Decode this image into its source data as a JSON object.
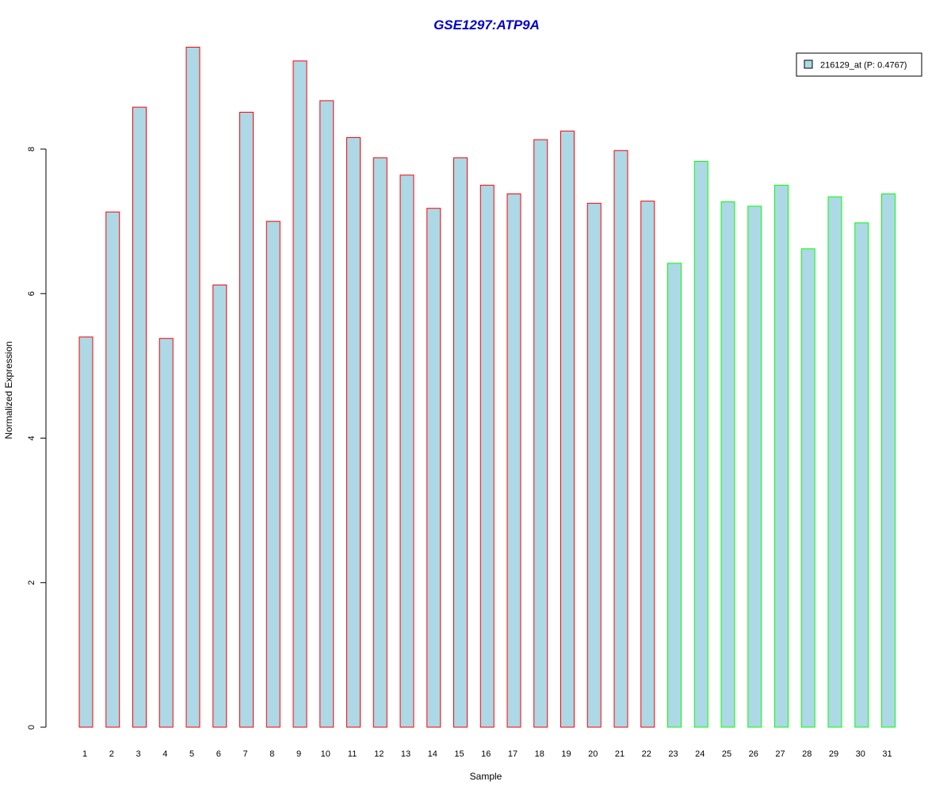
{
  "chart_data": {
    "type": "bar",
    "title": "GSE1297:ATP9A",
    "title_color": "#0000cc",
    "xlabel": "Sample",
    "ylabel": "Normalized Expression",
    "ylim": [
      0,
      9.5
    ],
    "y_ticks": [
      0,
      2,
      4,
      6,
      8
    ],
    "grid": false,
    "legend_position": "top-right",
    "fill_color": "#add8e6",
    "group_colors": {
      "group1": "#ff0000",
      "group2": "#00ff00"
    },
    "categories": [
      "1",
      "2",
      "3",
      "4",
      "5",
      "6",
      "7",
      "8",
      "9",
      "10",
      "11",
      "12",
      "13",
      "14",
      "15",
      "16",
      "17",
      "18",
      "19",
      "20",
      "21",
      "22",
      "23",
      "24",
      "25",
      "26",
      "27",
      "28",
      "29",
      "30",
      "31"
    ],
    "series": [
      {
        "name": "216129_at (P: 0.4767)",
        "values": [
          5.4,
          7.13,
          8.58,
          5.38,
          9.41,
          6.12,
          8.51,
          7.0,
          9.22,
          8.67,
          8.16,
          7.88,
          7.64,
          7.18,
          7.88,
          7.5,
          7.38,
          8.13,
          8.25,
          7.25,
          7.98,
          7.28,
          6.42,
          7.83,
          7.27,
          7.21,
          7.5,
          6.62,
          7.34,
          6.98,
          7.38
        ],
        "groups": [
          "group1",
          "group1",
          "group1",
          "group1",
          "group1",
          "group1",
          "group1",
          "group1",
          "group1",
          "group1",
          "group1",
          "group1",
          "group1",
          "group1",
          "group1",
          "group1",
          "group1",
          "group1",
          "group1",
          "group1",
          "group1",
          "group1",
          "group2",
          "group2",
          "group2",
          "group2",
          "group2",
          "group2",
          "group2",
          "group2",
          "group2"
        ]
      }
    ]
  }
}
